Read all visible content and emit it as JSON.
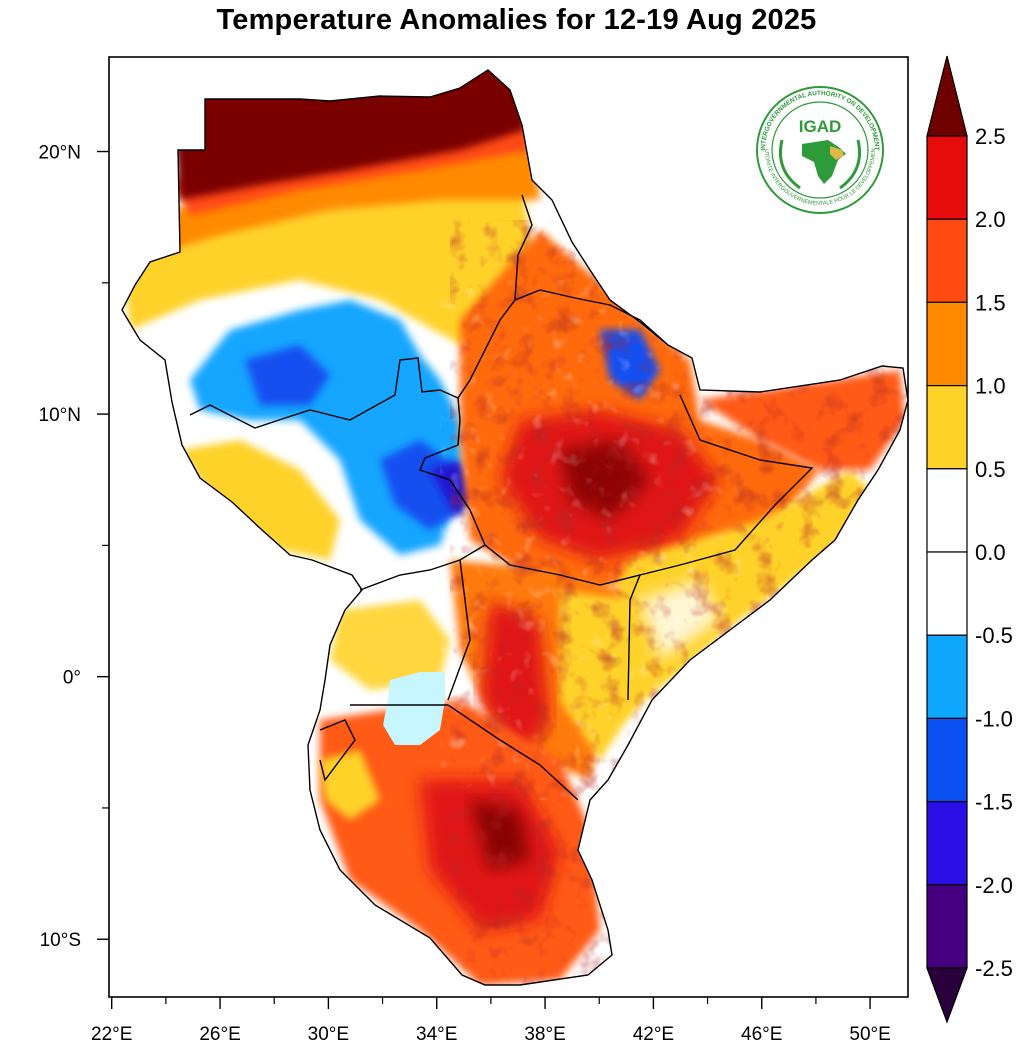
{
  "title": "Temperature Anomalies for 12-19 Aug 2025",
  "logo": {
    "acronym": "IGAD",
    "ring_top": "INTERGOVERNMENTAL AUTHORITY ON DEVELOPMENT",
    "ring_bottom": "AUTORITE INTERGOUVERNEMENTALE POUR LE DEVELOPPEMENT",
    "color": "#2e9b3a"
  },
  "axes": {
    "lon_ticks": [
      {
        "lon": 22,
        "label": "22°E"
      },
      {
        "lon": 26,
        "label": "26°E"
      },
      {
        "lon": 30,
        "label": "30°E"
      },
      {
        "lon": 34,
        "label": "34°E"
      },
      {
        "lon": 38,
        "label": "38°E"
      },
      {
        "lon": 42,
        "label": "42°E"
      },
      {
        "lon": 46,
        "label": "46°E"
      },
      {
        "lon": 50,
        "label": "50°E"
      }
    ],
    "lat_ticks": [
      {
        "lat": 20,
        "label": "20°N"
      },
      {
        "lat": 10,
        "label": "10°N"
      },
      {
        "lat": 0,
        "label": "0°"
      },
      {
        "lat": -10,
        "label": "10°S"
      }
    ],
    "lon_range": [
      21.9,
      51.4
    ],
    "lat_range": [
      -12.2,
      23.6
    ]
  },
  "colorbar": {
    "levels": [
      "2.5",
      "2.0",
      "1.5",
      "1.0",
      "0.5",
      "0.0",
      "-0.5",
      "-1.0",
      "-1.5",
      "-2.0",
      "-2.5"
    ],
    "colors": [
      "#6e0000",
      "#e60c0c",
      "#ff4a12",
      "#ff8a00",
      "#ffd22a",
      "#ffffff",
      "#ffffff",
      "#10a8ff",
      "#0a50f0",
      "#2a10e6",
      "#44007e",
      "#2a003c"
    ]
  },
  "colors": {
    "dark_red": "#7a0000",
    "red": "#e01414",
    "orange_red": "#ff4a12",
    "orange": "#ff8a00",
    "yellow": "#ffd22a",
    "light_blue": "#c8f6ff",
    "sky_blue": "#14a5ff",
    "blue": "#1450f0",
    "navy": "#2218d0"
  }
}
